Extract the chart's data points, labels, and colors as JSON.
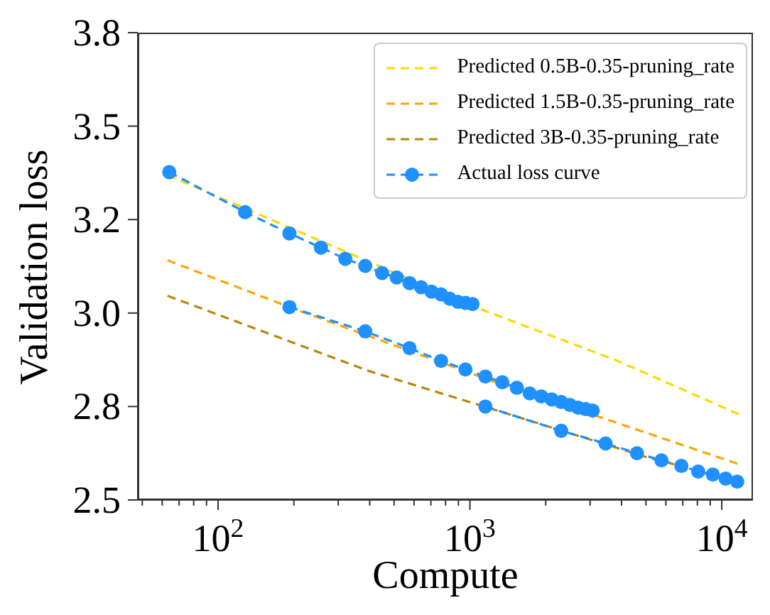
{
  "chart_data": {
    "type": "line",
    "xlabel": "Compute",
    "ylabel": "Validation loss",
    "log": "x",
    "legend": "top right",
    "xlim": [
      48,
      13300
    ],
    "ylim": [
      2.5,
      3.75
    ],
    "xticks": [
      {
        "value": 50,
        "label": null
      },
      {
        "value": 60,
        "label": null
      },
      {
        "value": 70,
        "label": null
      },
      {
        "value": 80,
        "label": null
      },
      {
        "value": 90,
        "label": null
      },
      {
        "value": 100,
        "label": "10$^{2}$"
      },
      {
        "value": 200,
        "label": null
      },
      {
        "value": 300,
        "label": null
      },
      {
        "value": 400,
        "label": null
      },
      {
        "value": 500,
        "label": null
      },
      {
        "value": 600,
        "label": null
      },
      {
        "value": 700,
        "label": null
      },
      {
        "value": 800,
        "label": null
      },
      {
        "value": 900,
        "label": null
      },
      {
        "value": 1000,
        "label": "10$^{3}$"
      },
      {
        "value": 2000,
        "label": null
      },
      {
        "value": 3000,
        "label": null
      },
      {
        "value": 4000,
        "label": null
      },
      {
        "value": 5000,
        "label": null
      },
      {
        "value": 6000,
        "label": null
      },
      {
        "value": 7000,
        "label": null
      },
      {
        "value": 8000,
        "label": null
      },
      {
        "value": 9000,
        "label": null
      },
      {
        "value": 10000,
        "label": "10$^{4}$"
      }
    ],
    "yticks": [
      2.5,
      {
        "value": 2.75,
        "label": "2.8"
      },
      {
        "value": 3,
        "label": "3.0"
      },
      {
        "value": 3.25,
        "label": "3.2"
      },
      3.5,
      {
        "value": 3.75,
        "label": "3.8"
      }
    ],
    "series": [
      {
        "name": "Predicted 0.5B-0.35-pruning_rate",
        "color": "#ffd700",
        "line_style": "dashed",
        "marker": "none",
        "x": [
          63,
          1010,
          3770,
          11900
        ],
        "values": [
          3.369,
          3.02,
          2.875,
          2.727
        ]
      },
      {
        "name": "Predicted 1.5B-0.35-pruning_rate",
        "color": "#ffa500",
        "line_style": "dashed",
        "marker": "none",
        "x": [
          63,
          199,
          1183,
          3770,
          11900
        ],
        "values": [
          3.141,
          3.012,
          2.822,
          2.708,
          2.594
        ]
      },
      {
        "name": "Predicted 3B-0.35-pruning_rate",
        "color": "#b8860b",
        "line_style": "dashed",
        "marker": "none",
        "x": [
          63,
          397,
          1500,
          5000,
          11900
        ],
        "values": [
          3.046,
          2.845,
          2.725,
          2.615,
          2.549
        ]
      },
      {
        "name": "Actual loss curve",
        "color": "#1e90ff",
        "line_style": "dashed",
        "marker": "circle",
        "x": [
          64,
          128,
          192,
          256,
          320,
          384,
          448,
          512,
          576,
          640,
          704,
          768,
          832,
          896,
          960,
          1024,
          null,
          192,
          384,
          576,
          768,
          960,
          1152,
          1344,
          1536,
          1728,
          1920,
          2112,
          2304,
          2496,
          2688,
          2880,
          3072,
          null,
          1152,
          2304,
          3456,
          4608,
          5760,
          6912,
          8064,
          9216,
          10368,
          11520
        ],
        "values": [
          3.377,
          3.27,
          3.213,
          3.175,
          3.145,
          3.126,
          3.107,
          3.095,
          3.08,
          3.069,
          3.057,
          3.05,
          3.038,
          3.03,
          3.027,
          3.024,
          null,
          3.016,
          2.951,
          2.906,
          2.872,
          2.849,
          2.83,
          2.815,
          2.8,
          2.785,
          2.777,
          2.769,
          2.762,
          2.754,
          2.747,
          2.743,
          2.739,
          null,
          2.75,
          2.685,
          2.651,
          2.625,
          2.606,
          2.591,
          2.576,
          2.568,
          2.557,
          2.549
        ]
      }
    ]
  }
}
